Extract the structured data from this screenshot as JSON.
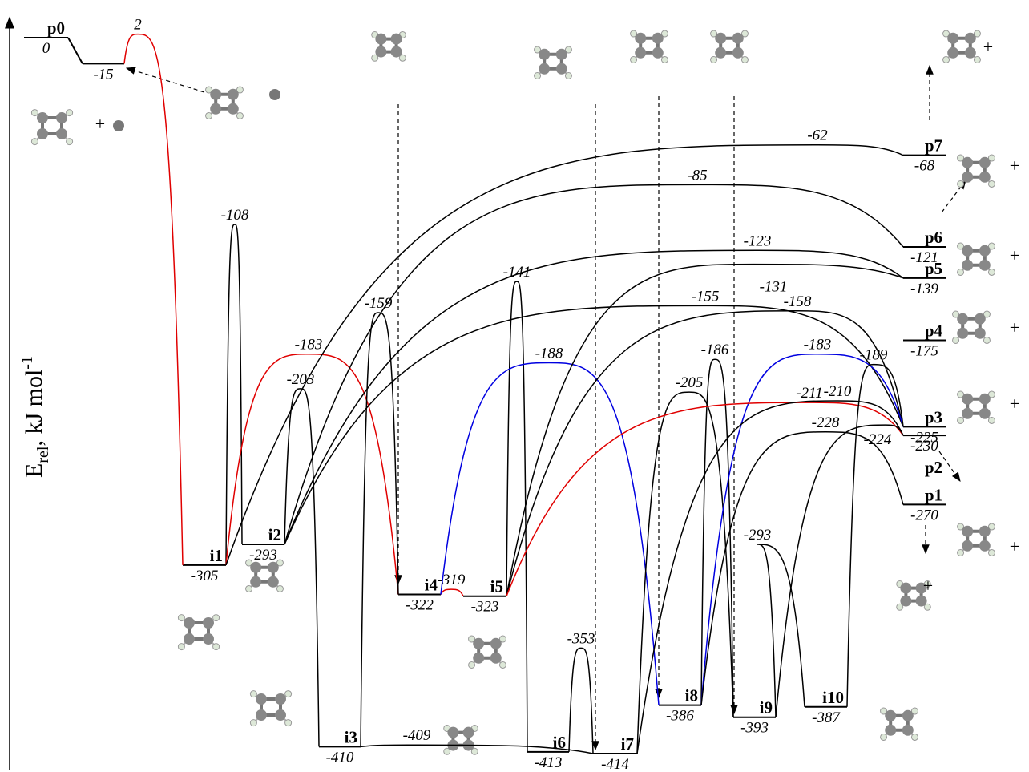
{
  "axis_label": {
    "main": "E",
    "sub": "rel",
    "unit": ", kJ mol",
    "sup": "-1"
  },
  "plus": "+",
  "levels": [
    {
      "name": "p0",
      "energy": 0
    },
    {
      "energy": -15
    },
    {
      "name": "i1",
      "energy": -305
    },
    {
      "name": "i2",
      "energy": -293
    },
    {
      "name": "i3",
      "energy": -410
    },
    {
      "name": "i4",
      "energy": -322
    },
    {
      "name": "i5",
      "energy": -323
    },
    {
      "name": "i6",
      "energy": -413
    },
    {
      "name": "i7",
      "energy": -414
    },
    {
      "name": "i8",
      "energy": -386
    },
    {
      "name": "i9",
      "energy": -393
    },
    {
      "name": "i10",
      "energy": -387
    },
    {
      "name": "p1",
      "energy": -270
    },
    {
      "name": "p2",
      "energy": -230
    },
    {
      "name": "p3",
      "energy": -225
    },
    {
      "name": "p4",
      "energy": -175
    },
    {
      "name": "p5",
      "energy": -139
    },
    {
      "name": "p6",
      "energy": -121
    },
    {
      "name": "p7",
      "energy": -68
    }
  ],
  "transitions": [
    {
      "energy": 2,
      "color": "#e00000"
    },
    {
      "energy": -108,
      "color": "#000000"
    },
    {
      "energy": -183,
      "color": "#e00000"
    },
    {
      "energy": -203,
      "color": "#000000"
    },
    {
      "energy": -159,
      "color": "#000000"
    },
    {
      "energy": -319,
      "color": "#e00000"
    },
    {
      "energy": -141,
      "color": "#000000"
    },
    {
      "energy": -188,
      "color": "#0000e0"
    },
    {
      "energy": -409,
      "color": "#000000"
    },
    {
      "energy": -353,
      "color": "#000000"
    },
    {
      "energy": -205,
      "color": "#000000"
    },
    {
      "energy": -186,
      "color": "#000000"
    },
    {
      "energy": -293,
      "color": "#000000"
    },
    {
      "energy": -62,
      "color": "#000000"
    },
    {
      "energy": -85,
      "color": "#000000"
    },
    {
      "energy": -123,
      "color": "#000000"
    },
    {
      "energy": -131,
      "color": "#000000"
    },
    {
      "energy": -155,
      "color": "#000000"
    },
    {
      "energy": -158,
      "color": "#000000"
    },
    {
      "energy": -183,
      "color": "#0000e0"
    },
    {
      "energy": -211,
      "color": "#e00000"
    },
    {
      "energy": -210,
      "color": "#000000"
    },
    {
      "energy": -228,
      "color": "#000000"
    },
    {
      "energy": -224,
      "color": "#000000"
    },
    {
      "energy": -189,
      "color": "#000000"
    }
  ]
}
